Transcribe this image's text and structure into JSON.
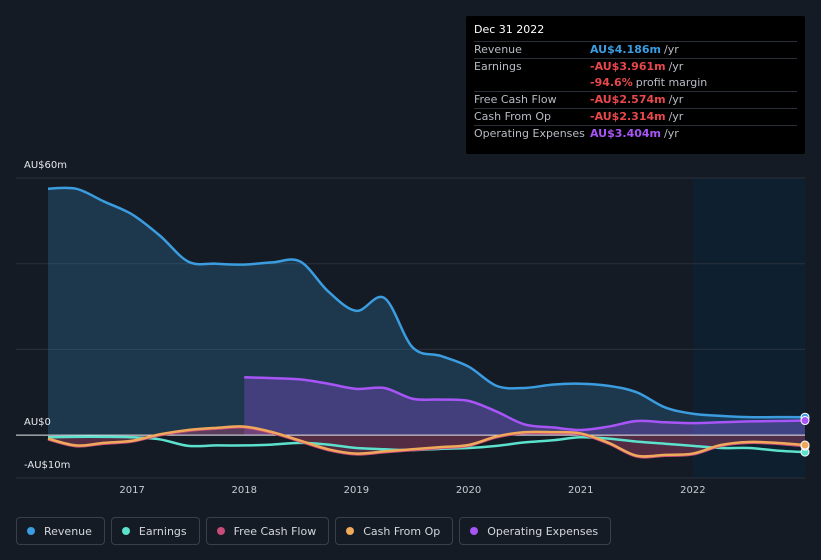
{
  "tooltip": {
    "date": "Dec 31 2022",
    "rows": [
      {
        "label": "Revenue",
        "value": "AU$4.186m",
        "unit": "/yr",
        "color": "#3b9de0"
      },
      {
        "label": "Earnings",
        "value": "-AU$3.961m",
        "unit": "/yr",
        "color": "#e8474c"
      },
      {
        "label": "",
        "value": "-94.6%",
        "unit": "profit margin",
        "color": "#e8474c"
      },
      {
        "label": "Free Cash Flow",
        "value": "-AU$2.574m",
        "unit": "/yr",
        "color": "#e8474c"
      },
      {
        "label": "Cash From Op",
        "value": "-AU$2.314m",
        "unit": "/yr",
        "color": "#e8474c"
      },
      {
        "label": "Operating Expenses",
        "value": "AU$3.404m",
        "unit": "/yr",
        "color": "#a855f7"
      }
    ]
  },
  "legend": [
    {
      "label": "Revenue",
      "color": "#3b9de0"
    },
    {
      "label": "Earnings",
      "color": "#5ce1cc"
    },
    {
      "label": "Free Cash Flow",
      "color": "#c84b7a"
    },
    {
      "label": "Cash From Op",
      "color": "#f0a95b"
    },
    {
      "label": "Operating Expenses",
      "color": "#a855f7"
    }
  ],
  "chart_data": {
    "type": "area",
    "ylabel_top": "AU$60m",
    "ylabel_zero": "AU$0",
    "ylabel_bottom": "-AU$10m",
    "ylim": [
      -10,
      60
    ],
    "xlim": [
      2016.25,
      2023.0
    ],
    "x_ticks": [
      "2017",
      "2018",
      "2019",
      "2020",
      "2021",
      "2022"
    ],
    "x_tick_values": [
      2017,
      2018,
      2019,
      2020,
      2021,
      2022
    ],
    "forecast_start": 2022.0,
    "series": [
      {
        "name": "Revenue",
        "color": "#3b9de0",
        "x": [
          2016.25,
          2016.5,
          2016.75,
          2017.0,
          2017.25,
          2017.5,
          2017.75,
          2018.0,
          2018.25,
          2018.5,
          2018.75,
          2019.0,
          2019.25,
          2019.5,
          2019.75,
          2020.0,
          2020.25,
          2020.5,
          2020.75,
          2021.0,
          2021.25,
          2021.5,
          2021.75,
          2022.0,
          2022.25,
          2022.5,
          2022.75,
          2023.0
        ],
        "values": [
          57.5,
          57.5,
          54.5,
          51.5,
          46.5,
          40.5,
          40.0,
          39.8,
          40.3,
          40.5,
          33.5,
          29.0,
          32.0,
          20.5,
          18.5,
          16.0,
          11.5,
          11.0,
          11.8,
          12.0,
          11.5,
          10.0,
          6.5,
          5.0,
          4.5,
          4.2,
          4.2,
          4.186
        ]
      },
      {
        "name": "Operating Expenses",
        "color": "#a855f7",
        "x": [
          2018.0,
          2018.25,
          2018.5,
          2018.75,
          2019.0,
          2019.25,
          2019.5,
          2019.75,
          2020.0,
          2020.25,
          2020.5,
          2020.75,
          2021.0,
          2021.25,
          2021.5,
          2021.75,
          2022.0,
          2022.25,
          2022.5,
          2022.75,
          2023.0
        ],
        "values": [
          13.5,
          13.3,
          13.0,
          12.0,
          10.8,
          11.0,
          8.5,
          8.3,
          8.0,
          5.5,
          2.5,
          1.8,
          1.2,
          2.0,
          3.3,
          3.0,
          2.8,
          3.0,
          3.2,
          3.3,
          3.404
        ]
      },
      {
        "name": "Earnings",
        "color": "#5ce1cc",
        "x": [
          2016.25,
          2016.5,
          2016.75,
          2017.0,
          2017.25,
          2017.5,
          2017.75,
          2018.0,
          2018.25,
          2018.5,
          2018.75,
          2019.0,
          2019.25,
          2019.5,
          2019.75,
          2020.0,
          2020.25,
          2020.5,
          2020.75,
          2021.0,
          2021.25,
          2021.5,
          2021.75,
          2022.0,
          2022.25,
          2022.5,
          2022.75,
          2023.0
        ],
        "values": [
          -0.5,
          -0.4,
          -0.4,
          -0.5,
          -1.0,
          -2.5,
          -2.4,
          -2.4,
          -2.2,
          -1.8,
          -2.2,
          -3.0,
          -3.3,
          -3.5,
          -3.2,
          -3.0,
          -2.5,
          -1.7,
          -1.2,
          -0.5,
          -0.8,
          -1.5,
          -2.0,
          -2.5,
          -3.0,
          -3.0,
          -3.6,
          -3.961
        ]
      },
      {
        "name": "Free Cash Flow",
        "color": "#c84b7a",
        "x": [
          2016.25,
          2016.5,
          2016.75,
          2017.0,
          2017.25,
          2017.5,
          2017.75,
          2018.0,
          2018.25,
          2018.5,
          2018.75,
          2019.0,
          2019.25,
          2019.5,
          2019.75,
          2020.0,
          2020.25,
          2020.5,
          2020.75,
          2021.0,
          2021.25,
          2021.5,
          2021.75,
          2022.0,
          2022.25,
          2022.5,
          2022.75,
          2023.0
        ],
        "values": [
          -1.0,
          -2.6,
          -2.0,
          -1.5,
          0.0,
          1.0,
          1.5,
          1.8,
          0.5,
          -1.5,
          -3.5,
          -4.5,
          -4.0,
          -3.5,
          -3.0,
          -2.5,
          -0.5,
          0.5,
          0.5,
          0.2,
          -2.0,
          -5.0,
          -4.8,
          -4.5,
          -2.5,
          -1.8,
          -2.0,
          -2.574
        ]
      },
      {
        "name": "Cash From Op",
        "color": "#f0a95b",
        "x": [
          2016.25,
          2016.5,
          2016.75,
          2017.0,
          2017.25,
          2017.5,
          2017.75,
          2018.0,
          2018.25,
          2018.5,
          2018.75,
          2019.0,
          2019.25,
          2019.5,
          2019.75,
          2020.0,
          2020.25,
          2020.5,
          2020.75,
          2021.0,
          2021.25,
          2021.5,
          2021.75,
          2022.0,
          2022.25,
          2022.5,
          2022.75,
          2023.0
        ],
        "values": [
          -0.8,
          -2.4,
          -1.8,
          -1.3,
          0.2,
          1.2,
          1.7,
          2.0,
          0.7,
          -1.3,
          -3.3,
          -4.3,
          -3.8,
          -3.3,
          -2.8,
          -2.3,
          -0.3,
          0.7,
          0.7,
          0.4,
          -1.8,
          -4.8,
          -4.6,
          -4.3,
          -2.3,
          -1.6,
          -1.8,
          -2.314
        ]
      }
    ]
  }
}
